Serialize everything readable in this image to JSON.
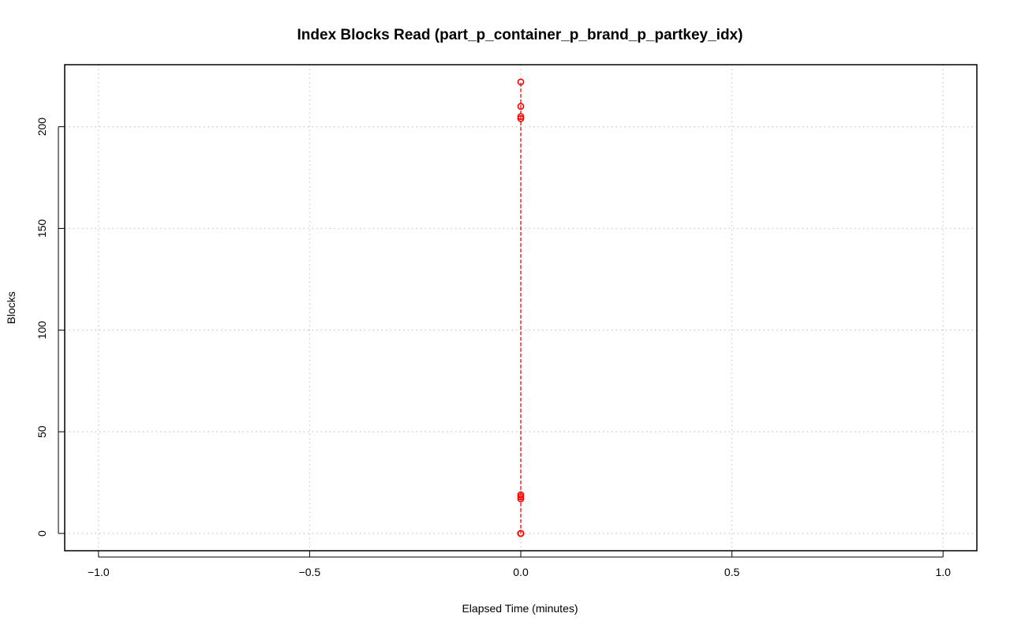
{
  "chart_data": {
    "type": "line",
    "title": "Index Blocks Read (part_p_container_p_brand_p_partkey_idx)",
    "xlabel": "Elapsed Time (minutes)",
    "ylabel": "Blocks",
    "xlim": [
      -1.08,
      1.08
    ],
    "ylim": [
      -8.5,
      230.5
    ],
    "xticks": [
      -1.0,
      -0.5,
      0.0,
      0.5,
      1.0
    ],
    "xtick_labels": [
      "−1.0",
      "−0.5",
      "0.0",
      "0.5",
      "1.0"
    ],
    "yticks": [
      0,
      50,
      100,
      150,
      200
    ],
    "ytick_labels": [
      "0",
      "50",
      "100",
      "150",
      "200"
    ],
    "grid": true,
    "series": [
      {
        "color": "#ff0000",
        "marker": "open-circle",
        "linestyle": "dashed",
        "x": [
          0,
          0,
          0,
          0,
          0,
          0,
          0,
          0,
          0,
          0
        ],
        "y": [
          0,
          0,
          17,
          18,
          19,
          204,
          205,
          210,
          222,
          0
        ]
      }
    ]
  }
}
